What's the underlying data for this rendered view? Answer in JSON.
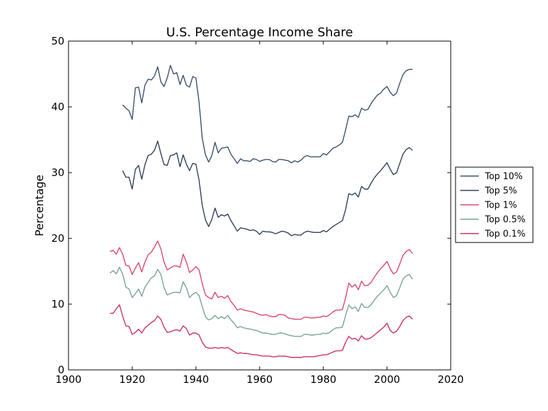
{
  "chart_data": {
    "type": "line",
    "title": "U.S. Percentage Income Share",
    "xlabel": "",
    "ylabel": "Percentage",
    "xlim": [
      1900,
      2020
    ],
    "ylim": [
      0,
      50
    ],
    "xticks": [
      "1900",
      "1920",
      "1940",
      "1960",
      "1980",
      "2000",
      "2020"
    ],
    "yticks": [
      "0",
      "10",
      "20",
      "30",
      "40",
      "50"
    ],
    "grid": false,
    "legend": {
      "placement": "right, outside plot"
    },
    "series": [
      {
        "name": "Top 10%",
        "color": "#3b4f68",
        "x": [
          1917,
          1918,
          1919,
          1920,
          1921,
          1922,
          1923,
          1924,
          1925,
          1926,
          1927,
          1928,
          1929,
          1930,
          1931,
          1932,
          1933,
          1934,
          1935,
          1936,
          1937,
          1938,
          1939,
          1940,
          1941,
          1942,
          1943,
          1944,
          1945,
          1946,
          1947,
          1948,
          1949,
          1950,
          1951,
          1952,
          1953,
          1954,
          1955,
          1956,
          1957,
          1958,
          1959,
          1960,
          1961,
          1962,
          1963,
          1964,
          1965,
          1966,
          1967,
          1968,
          1969,
          1970,
          1971,
          1972,
          1973,
          1974,
          1975,
          1976,
          1977,
          1978,
          1979,
          1980,
          1981,
          1982,
          1983,
          1984,
          1985,
          1986,
          1987,
          1988,
          1989,
          1990,
          1991,
          1992,
          1993,
          1994,
          1995,
          1996,
          1997,
          1998,
          1999,
          2000,
          2001,
          2002,
          2003,
          2004,
          2005,
          2006,
          2007,
          2008
        ],
        "values": [
          40.3,
          39.8,
          39.4,
          38.1,
          42.9,
          43.0,
          40.6,
          43.3,
          44.2,
          44.1,
          44.7,
          46.1,
          43.8,
          43.1,
          44.4,
          46.3,
          45.0,
          45.2,
          43.4,
          44.8,
          43.3,
          43.0,
          44.6,
          44.4,
          40.7,
          35.2,
          32.7,
          31.6,
          32.6,
          34.6,
          33.0,
          33.7,
          33.8,
          33.9,
          32.8,
          32.1,
          31.4,
          32.1,
          31.8,
          31.8,
          31.7,
          32.1,
          32.0,
          31.7,
          31.9,
          32.0,
          32.0,
          31.7,
          31.6,
          32.0,
          32.0,
          31.9,
          31.8,
          31.5,
          31.8,
          31.6,
          31.9,
          32.4,
          32.6,
          32.4,
          32.4,
          32.4,
          32.4,
          32.9,
          32.7,
          33.2,
          33.7,
          33.9,
          34.2,
          34.6,
          36.5,
          38.6,
          38.5,
          38.8,
          38.4,
          39.8,
          39.5,
          39.6,
          40.5,
          41.2,
          41.8,
          42.1,
          42.7,
          43.1,
          42.2,
          41.7,
          42.1,
          43.6,
          44.9,
          45.5,
          45.7,
          45.7
        ]
      },
      {
        "name": "Top 5%",
        "color": "#2f3e56",
        "x": [
          1917,
          1918,
          1919,
          1920,
          1921,
          1922,
          1923,
          1924,
          1925,
          1926,
          1927,
          1928,
          1929,
          1930,
          1931,
          1932,
          1933,
          1934,
          1935,
          1936,
          1937,
          1938,
          1939,
          1940,
          1941,
          1942,
          1943,
          1944,
          1945,
          1946,
          1947,
          1948,
          1949,
          1950,
          1951,
          1952,
          1953,
          1954,
          1955,
          1956,
          1957,
          1958,
          1959,
          1960,
          1961,
          1962,
          1963,
          1964,
          1965,
          1966,
          1967,
          1968,
          1969,
          1970,
          1971,
          1972,
          1973,
          1974,
          1975,
          1976,
          1977,
          1978,
          1979,
          1980,
          1981,
          1982,
          1983,
          1984,
          1985,
          1986,
          1987,
          1988,
          1989,
          1990,
          1991,
          1992,
          1993,
          1994,
          1995,
          1996,
          1997,
          1998,
          1999,
          2000,
          2001,
          2002,
          2003,
          2004,
          2005,
          2006,
          2007,
          2008
        ],
        "values": [
          30.3,
          29.3,
          29.3,
          27.5,
          30.5,
          31.1,
          29.0,
          31.2,
          32.6,
          32.8,
          33.4,
          34.8,
          32.9,
          31.2,
          31.1,
          32.6,
          32.7,
          33.0,
          30.9,
          32.7,
          31.3,
          30.3,
          31.4,
          31.3,
          28.8,
          25.0,
          22.8,
          21.8,
          22.9,
          24.6,
          23.2,
          23.6,
          23.4,
          23.7,
          22.7,
          21.9,
          21.1,
          21.6,
          21.5,
          21.4,
          21.2,
          21.3,
          21.1,
          20.6,
          21.1,
          21.0,
          21.0,
          20.9,
          20.7,
          20.9,
          21.1,
          21.0,
          20.8,
          20.4,
          20.6,
          20.5,
          20.5,
          20.9,
          21.1,
          21.0,
          20.9,
          20.9,
          20.9,
          21.2,
          21.0,
          21.4,
          21.8,
          22.1,
          22.4,
          22.7,
          24.4,
          26.8,
          26.6,
          26.9,
          26.3,
          27.9,
          27.5,
          27.5,
          28.4,
          29.2,
          29.8,
          30.3,
          30.9,
          31.5,
          30.5,
          29.7,
          30.0,
          31.4,
          32.8,
          33.5,
          33.8,
          33.4
        ]
      },
      {
        "name": "Top 1%",
        "color": "#d94668",
        "x": [
          1913,
          1914,
          1915,
          1916,
          1917,
          1918,
          1919,
          1920,
          1921,
          1922,
          1923,
          1924,
          1925,
          1926,
          1927,
          1928,
          1929,
          1930,
          1931,
          1932,
          1933,
          1934,
          1935,
          1936,
          1937,
          1938,
          1939,
          1940,
          1941,
          1942,
          1943,
          1944,
          1945,
          1946,
          1947,
          1948,
          1949,
          1950,
          1951,
          1952,
          1953,
          1954,
          1955,
          1956,
          1957,
          1958,
          1959,
          1960,
          1961,
          1962,
          1963,
          1964,
          1965,
          1966,
          1967,
          1968,
          1969,
          1970,
          1971,
          1972,
          1973,
          1974,
          1975,
          1976,
          1977,
          1978,
          1979,
          1980,
          1981,
          1982,
          1983,
          1984,
          1985,
          1986,
          1987,
          1988,
          1989,
          1990,
          1991,
          1992,
          1993,
          1994,
          1995,
          1996,
          1997,
          1998,
          1999,
          2000,
          2001,
          2002,
          2003,
          2004,
          2005,
          2006,
          2007,
          2008
        ],
        "values": [
          18.0,
          18.2,
          17.6,
          18.6,
          17.6,
          15.9,
          15.8,
          14.5,
          15.5,
          16.3,
          14.9,
          16.4,
          17.5,
          17.9,
          18.7,
          19.6,
          18.4,
          16.4,
          15.2,
          15.5,
          15.8,
          15.8,
          15.6,
          17.6,
          16.4,
          14.8,
          15.2,
          15.7,
          15.2,
          13.1,
          11.4,
          11.0,
          10.8,
          11.8,
          11.0,
          11.2,
          10.9,
          11.3,
          10.4,
          9.8,
          9.1,
          9.3,
          9.1,
          9.0,
          8.9,
          8.8,
          8.6,
          8.4,
          8.3,
          8.4,
          8.2,
          8.1,
          8.1,
          8.4,
          8.4,
          8.3,
          7.9,
          7.8,
          7.7,
          7.7,
          7.7,
          8.0,
          8.0,
          7.9,
          7.9,
          8.0,
          8.0,
          8.2,
          8.1,
          8.4,
          8.8,
          9.1,
          9.1,
          9.2,
          11.0,
          13.2,
          12.6,
          13.0,
          12.2,
          13.5,
          12.8,
          12.9,
          13.3,
          14.1,
          14.8,
          15.4,
          15.9,
          16.5,
          15.4,
          14.6,
          14.9,
          16.1,
          17.4,
          18.0,
          18.3,
          17.7
        ]
      },
      {
        "name": "Top 0.5%",
        "color": "#77a19a",
        "x": [
          1913,
          1914,
          1915,
          1916,
          1917,
          1918,
          1919,
          1920,
          1921,
          1922,
          1923,
          1924,
          1925,
          1926,
          1927,
          1928,
          1929,
          1930,
          1931,
          1932,
          1933,
          1934,
          1935,
          1936,
          1937,
          1938,
          1939,
          1940,
          1941,
          1942,
          1943,
          1944,
          1945,
          1946,
          1947,
          1948,
          1949,
          1950,
          1951,
          1952,
          1953,
          1954,
          1955,
          1956,
          1957,
          1958,
          1959,
          1960,
          1961,
          1962,
          1963,
          1964,
          1965,
          1966,
          1967,
          1968,
          1969,
          1970,
          1971,
          1972,
          1973,
          1974,
          1975,
          1976,
          1977,
          1978,
          1979,
          1980,
          1981,
          1982,
          1983,
          1984,
          1985,
          1986,
          1987,
          1988,
          1989,
          1990,
          1991,
          1992,
          1993,
          1994,
          1995,
          1996,
          1997,
          1998,
          1999,
          2000,
          2001,
          2002,
          2003,
          2004,
          2005,
          2006,
          2007,
          2008
        ],
        "values": [
          14.7,
          15.1,
          14.6,
          15.6,
          14.6,
          12.6,
          12.3,
          11.0,
          11.6,
          12.3,
          11.2,
          12.6,
          13.3,
          14.0,
          14.3,
          15.3,
          14.5,
          12.5,
          11.4,
          11.6,
          11.8,
          11.8,
          11.7,
          13.4,
          12.5,
          11.0,
          11.5,
          11.8,
          11.3,
          9.6,
          8.1,
          7.6,
          7.8,
          8.3,
          7.8,
          8.1,
          7.8,
          8.3,
          7.6,
          7.1,
          6.4,
          6.6,
          6.4,
          6.3,
          6.2,
          6.1,
          6.0,
          5.8,
          5.6,
          5.6,
          5.5,
          5.4,
          5.4,
          5.6,
          5.6,
          5.5,
          5.3,
          5.2,
          5.1,
          5.1,
          5.1,
          5.4,
          5.4,
          5.3,
          5.3,
          5.4,
          5.4,
          5.6,
          5.5,
          5.7,
          6.1,
          6.4,
          6.4,
          6.5,
          8.3,
          9.9,
          9.3,
          9.6,
          8.9,
          10.1,
          9.5,
          9.5,
          9.9,
          10.6,
          11.2,
          11.7,
          12.2,
          12.8,
          11.8,
          11.0,
          11.3,
          12.5,
          13.8,
          14.3,
          14.5,
          13.8
        ]
      },
      {
        "name": "Top 0.1%",
        "color": "#c93061",
        "x": [
          1913,
          1914,
          1915,
          1916,
          1917,
          1918,
          1919,
          1920,
          1921,
          1922,
          1923,
          1924,
          1925,
          1926,
          1927,
          1928,
          1929,
          1930,
          1931,
          1932,
          1933,
          1934,
          1935,
          1936,
          1937,
          1938,
          1939,
          1940,
          1941,
          1942,
          1943,
          1944,
          1945,
          1946,
          1947,
          1948,
          1949,
          1950,
          1951,
          1952,
          1953,
          1954,
          1955,
          1956,
          1957,
          1958,
          1959,
          1960,
          1961,
          1962,
          1963,
          1964,
          1965,
          1966,
          1967,
          1968,
          1969,
          1970,
          1971,
          1972,
          1973,
          1974,
          1975,
          1976,
          1977,
          1978,
          1979,
          1980,
          1981,
          1982,
          1983,
          1984,
          1985,
          1986,
          1987,
          1988,
          1989,
          1990,
          1991,
          1992,
          1993,
          1994,
          1995,
          1996,
          1997,
          1998,
          1999,
          2000,
          2001,
          2002,
          2003,
          2004,
          2005,
          2006,
          2007,
          2008
        ],
        "values": [
          8.6,
          8.6,
          9.3,
          9.9,
          8.2,
          6.7,
          6.6,
          5.4,
          5.7,
          6.2,
          5.6,
          6.4,
          6.8,
          7.2,
          7.5,
          8.2,
          7.7,
          6.5,
          5.7,
          5.8,
          6.0,
          6.1,
          5.9,
          6.7,
          6.3,
          5.3,
          5.6,
          5.6,
          5.3,
          4.2,
          3.5,
          3.3,
          3.3,
          3.4,
          3.3,
          3.4,
          3.3,
          3.4,
          3.1,
          2.8,
          2.5,
          2.6,
          2.5,
          2.5,
          2.4,
          2.3,
          2.3,
          2.2,
          2.1,
          2.1,
          2.1,
          2.0,
          2.0,
          2.1,
          2.1,
          2.1,
          2.0,
          1.9,
          1.9,
          1.9,
          1.9,
          2.0,
          2.0,
          2.0,
          2.0,
          2.1,
          2.2,
          2.3,
          2.3,
          2.5,
          2.7,
          2.9,
          2.9,
          3.0,
          4.2,
          5.1,
          4.7,
          4.8,
          4.4,
          5.2,
          4.7,
          4.7,
          4.9,
          5.3,
          5.7,
          6.1,
          6.5,
          7.1,
          6.0,
          5.6,
          5.9,
          6.6,
          7.5,
          8.0,
          8.2,
          7.7
        ]
      }
    ]
  }
}
